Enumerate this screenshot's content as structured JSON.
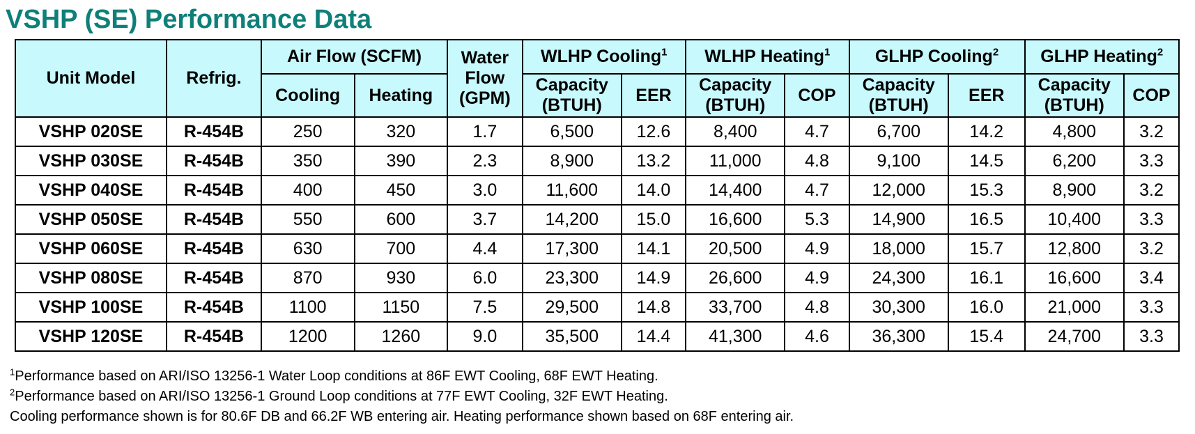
{
  "title": "VSHP (SE) Performance Data",
  "header": {
    "unit_model": "Unit Model",
    "refrig": "Refrig.",
    "air_flow": "Air Flow (SCFM)",
    "water_flow_line1": "Water",
    "water_flow_line2": "Flow",
    "water_flow_line3": "(GPM)",
    "wlhp_cooling": "WLHP Cooling",
    "wlhp_cooling_sup": "1",
    "wlhp_heating": "WLHP Heating",
    "wlhp_heating_sup": "1",
    "glhp_cooling": "GLHP Cooling",
    "glhp_cooling_sup": "2",
    "glhp_heating": "GLHP Heating",
    "glhp_heating_sup": "2",
    "cooling": "Cooling",
    "heating": "Heating",
    "capacity_line1": "Capacity",
    "capacity_line2": "(BTUH)",
    "eer": "EER",
    "cop": "COP"
  },
  "rows": [
    {
      "model": "VSHP 020SE",
      "refrig": "R-454B",
      "air_cooling": "250",
      "air_heating": "320",
      "water_flow": "1.7",
      "wlhp_cool_cap": "6,500",
      "wlhp_cool_eer": "12.6",
      "wlhp_heat_cap": "8,400",
      "wlhp_heat_cop": "4.7",
      "glhp_cool_cap": "6,700",
      "glhp_cool_eer": "14.2",
      "glhp_heat_cap": "4,800",
      "glhp_heat_cop": "3.2"
    },
    {
      "model": "VSHP 030SE",
      "refrig": "R-454B",
      "air_cooling": "350",
      "air_heating": "390",
      "water_flow": "2.3",
      "wlhp_cool_cap": "8,900",
      "wlhp_cool_eer": "13.2",
      "wlhp_heat_cap": "11,000",
      "wlhp_heat_cop": "4.8",
      "glhp_cool_cap": "9,100",
      "glhp_cool_eer": "14.5",
      "glhp_heat_cap": "6,200",
      "glhp_heat_cop": "3.3"
    },
    {
      "model": "VSHP 040SE",
      "refrig": "R-454B",
      "air_cooling": "400",
      "air_heating": "450",
      "water_flow": "3.0",
      "wlhp_cool_cap": "11,600",
      "wlhp_cool_eer": "14.0",
      "wlhp_heat_cap": "14,400",
      "wlhp_heat_cop": "4.7",
      "glhp_cool_cap": "12,000",
      "glhp_cool_eer": "15.3",
      "glhp_heat_cap": "8,900",
      "glhp_heat_cop": "3.2"
    },
    {
      "model": "VSHP 050SE",
      "refrig": "R-454B",
      "air_cooling": "550",
      "air_heating": "600",
      "water_flow": "3.7",
      "wlhp_cool_cap": "14,200",
      "wlhp_cool_eer": "15.0",
      "wlhp_heat_cap": "16,600",
      "wlhp_heat_cop": "5.3",
      "glhp_cool_cap": "14,900",
      "glhp_cool_eer": "16.5",
      "glhp_heat_cap": "10,400",
      "glhp_heat_cop": "3.3"
    },
    {
      "model": "VSHP 060SE",
      "refrig": "R-454B",
      "air_cooling": "630",
      "air_heating": "700",
      "water_flow": "4.4",
      "wlhp_cool_cap": "17,300",
      "wlhp_cool_eer": "14.1",
      "wlhp_heat_cap": "20,500",
      "wlhp_heat_cop": "4.9",
      "glhp_cool_cap": "18,000",
      "glhp_cool_eer": "15.7",
      "glhp_heat_cap": "12,800",
      "glhp_heat_cop": "3.2"
    },
    {
      "model": "VSHP 080SE",
      "refrig": "R-454B",
      "air_cooling": "870",
      "air_heating": "930",
      "water_flow": "6.0",
      "wlhp_cool_cap": "23,300",
      "wlhp_cool_eer": "14.9",
      "wlhp_heat_cap": "26,600",
      "wlhp_heat_cop": "4.9",
      "glhp_cool_cap": "24,300",
      "glhp_cool_eer": "16.1",
      "glhp_heat_cap": "16,600",
      "glhp_heat_cop": "3.4"
    },
    {
      "model": "VSHP 100SE",
      "refrig": "R-454B",
      "air_cooling": "1100",
      "air_heating": "1150",
      "water_flow": "7.5",
      "wlhp_cool_cap": "29,500",
      "wlhp_cool_eer": "14.8",
      "wlhp_heat_cap": "33,700",
      "wlhp_heat_cop": "4.8",
      "glhp_cool_cap": "30,300",
      "glhp_cool_eer": "16.0",
      "glhp_heat_cap": "21,000",
      "glhp_heat_cop": "3.3"
    },
    {
      "model": "VSHP 120SE",
      "refrig": "R-454B",
      "air_cooling": "1200",
      "air_heating": "1260",
      "water_flow": "9.0",
      "wlhp_cool_cap": "35,500",
      "wlhp_cool_eer": "14.4",
      "wlhp_heat_cap": "41,300",
      "wlhp_heat_cop": "4.6",
      "glhp_cool_cap": "36,300",
      "glhp_cool_eer": "15.4",
      "glhp_heat_cap": "24,700",
      "glhp_heat_cop": "3.3"
    }
  ],
  "notes": [
    {
      "sup": "1",
      "text": "Performance based on ARI/ISO 13256-1 Water Loop conditions at 86F EWT Cooling, 68F EWT Heating."
    },
    {
      "sup": "2",
      "text": "Performance based on ARI/ISO 13256-1 Ground Loop conditions at 77F EWT Cooling, 32F EWT Heating."
    },
    {
      "sup": "",
      "text": "Cooling performance shown is for 80.6F DB and 66.2F WB entering air. Heating performance shown based on 68F entering air."
    }
  ]
}
